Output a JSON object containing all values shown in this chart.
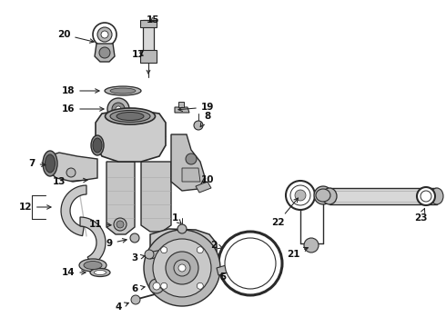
{
  "bg_color": "#ffffff",
  "figsize": [
    4.9,
    3.6
  ],
  "dpi": 100,
  "lc": "#2a2a2a",
  "fc_light": "#d8d8d8",
  "fc_mid": "#b8b8b8",
  "fc_dark": "#909090",
  "fc_white": "#ffffff"
}
